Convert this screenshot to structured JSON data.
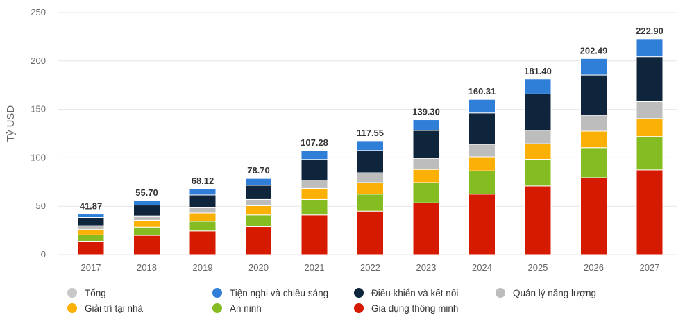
{
  "chart_data": {
    "type": "bar",
    "stacked": true,
    "ylabel": "Tỷ USD",
    "ylim": [
      0,
      250
    ],
    "yticks": [
      0,
      50,
      100,
      150,
      200,
      250
    ],
    "grid": true,
    "legend_position": "bottom",
    "categories": [
      "2017",
      "2018",
      "2019",
      "2020",
      "2021",
      "2022",
      "2023",
      "2024",
      "2025",
      "2026",
      "2027"
    ],
    "totals": [
      41.87,
      55.7,
      68.12,
      78.7,
      107.28,
      117.55,
      139.3,
      160.31,
      181.4,
      202.49,
      222.9
    ],
    "total_labels": [
      "41.87",
      "55.70",
      "68.12",
      "78.70",
      "107.28",
      "117.55",
      "139.30",
      "160.31",
      "181.40",
      "202.49",
      "222.90"
    ],
    "series": [
      {
        "name": "Gia dụng thông minh",
        "color": "#d61a00",
        "values": [
          14.0,
          20.0,
          24.5,
          29.0,
          41.0,
          45.0,
          53.5,
          62.5,
          71.0,
          79.5,
          87.5
        ]
      },
      {
        "name": "An ninh",
        "color": "#85bc22",
        "values": [
          6.5,
          8.5,
          10.0,
          12.0,
          16.0,
          17.5,
          21.0,
          24.0,
          27.5,
          31.0,
          34.5
        ]
      },
      {
        "name": "Giải trí tại nhà",
        "color": "#fab005",
        "values": [
          5.5,
          7.0,
          8.5,
          9.5,
          11.5,
          12.0,
          13.5,
          14.5,
          16.0,
          17.0,
          18.5
        ]
      },
      {
        "name": "Quản lý năng lượng",
        "color": "#bdbdbd",
        "values": [
          4.0,
          4.5,
          5.5,
          6.5,
          8.5,
          10.0,
          11.5,
          13.0,
          14.0,
          16.5,
          17.5
        ]
      },
      {
        "name": "Điều khiển và kết nối",
        "color": "#0f253c",
        "values": [
          8.37,
          11.2,
          13.12,
          14.7,
          21.28,
          23.05,
          28.8,
          32.31,
          37.4,
          41.49,
          46.4
        ]
      },
      {
        "name": "Tiện nghi và chiếu sáng",
        "color": "#2f7ed8",
        "values": [
          3.5,
          4.5,
          6.5,
          7.0,
          9.0,
          10.0,
          11.0,
          14.0,
          15.5,
          17.0,
          18.5
        ]
      }
    ],
    "legend": [
      {
        "name": "Tổng",
        "color": "#c8c8c8"
      },
      {
        "name": "Tiện nghi và chiều sáng",
        "color": "#2f7ed8"
      },
      {
        "name": "Điều khiển và kết nối",
        "color": "#0f253c"
      },
      {
        "name": "Quản lý năng lượng",
        "color": "#bdbdbd"
      },
      {
        "name": "Giải trí tại nhà",
        "color": "#fab005"
      },
      {
        "name": "An ninh",
        "color": "#85bc22"
      },
      {
        "name": "Gia dụng thông minh",
        "color": "#d61a00"
      }
    ]
  }
}
